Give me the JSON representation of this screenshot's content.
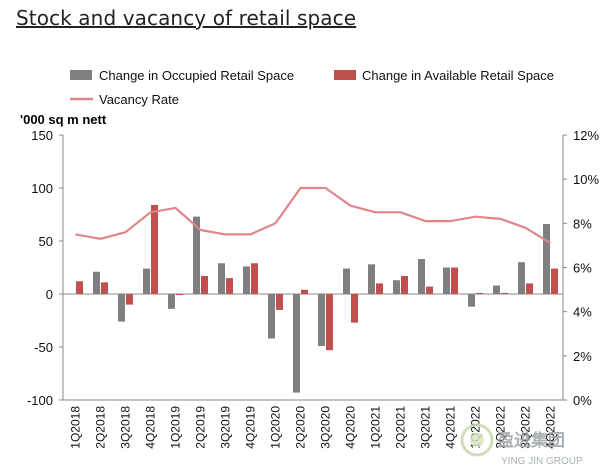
{
  "page": {
    "title": "Stock and vacancy of retail space"
  },
  "watermark": {
    "cn": "盈进集团",
    "en": "YING JIN GROUP"
  },
  "chart_data": {
    "type": "bar",
    "y_unit_label": "'000 sq m nett",
    "categories": [
      "1Q2018",
      "2Q2018",
      "3Q2018",
      "4Q2018",
      "1Q2019",
      "2Q2019",
      "3Q2019",
      "4Q2019",
      "1Q2020",
      "2Q2020",
      "3Q2020",
      "4Q2020",
      "1Q2021",
      "2Q2021",
      "3Q2021",
      "4Q2021",
      "1Q2022",
      "2Q2022",
      "3Q2022",
      "4Q2022"
    ],
    "series": [
      {
        "name": "Change in Occupied Retail Space",
        "type": "bar",
        "axis": "left",
        "color": "#7f7f7f",
        "values": [
          0,
          21,
          -26,
          24,
          -14,
          73,
          29,
          26,
          -42,
          -93,
          -49,
          24,
          28,
          13,
          33,
          25,
          -12,
          8,
          30,
          66
        ]
      },
      {
        "name": "Change in Available Retail Space",
        "type": "bar",
        "axis": "left",
        "color": "#c0504d",
        "values": [
          12,
          11,
          -10,
          84,
          -1,
          17,
          15,
          29,
          -15,
          4,
          -53,
          -27,
          10,
          17,
          7,
          25,
          1,
          1,
          10,
          24
        ]
      },
      {
        "name": "Vacancy Rate",
        "type": "line",
        "axis": "right",
        "color": "#e0868a",
        "values": [
          7.5,
          7.3,
          7.6,
          8.5,
          8.7,
          7.7,
          7.5,
          7.5,
          8.0,
          9.6,
          9.6,
          8.8,
          8.5,
          8.5,
          8.1,
          8.1,
          8.3,
          8.2,
          7.8,
          7.1
        ]
      }
    ],
    "y_left": {
      "min": -100,
      "max": 150,
      "ticks": [
        -100,
        -50,
        0,
        50,
        100,
        150
      ]
    },
    "y_right": {
      "min": 0,
      "max": 12,
      "ticks": [
        0,
        2,
        4,
        6,
        8,
        10,
        12
      ],
      "tick_labels": [
        "0%",
        "2%",
        "4%",
        "6%",
        "8%",
        "10%",
        "12%"
      ]
    },
    "legend": {
      "placement": "top"
    },
    "grid": false
  }
}
